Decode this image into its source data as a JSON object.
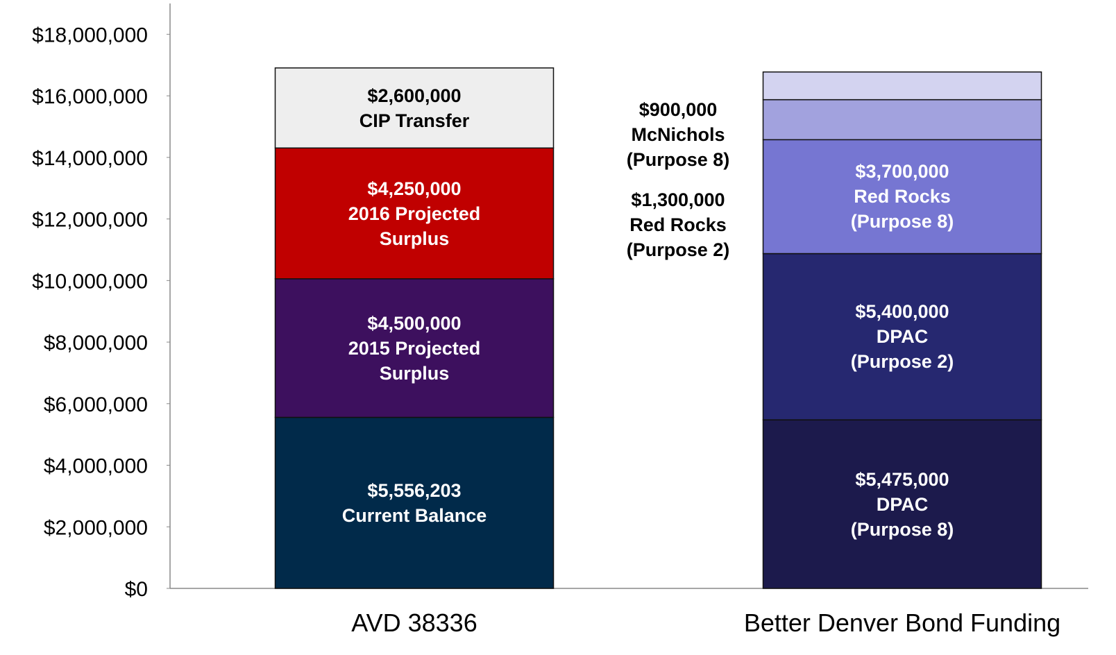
{
  "chart_data": {
    "type": "stacked-bar",
    "categories": [
      "AVD 38336",
      "Better Denver Bond Funding"
    ],
    "series": [
      {
        "name": "Current Balance",
        "color": "#012a4a",
        "values": [
          5556203,
          null
        ],
        "value_labels": [
          "$5,556,203",
          null
        ]
      },
      {
        "name": "2015 Projected Surplus",
        "color": "#3d105e",
        "values": [
          4500000,
          null
        ],
        "value_labels": [
          "$4,500,000",
          null
        ]
      },
      {
        "name": "2016 Projected Surplus",
        "color": "#c00000",
        "values": [
          4250000,
          null
        ],
        "value_labels": [
          "$4,250,000",
          null
        ]
      },
      {
        "name": "CIP Transfer",
        "color": "#eeeeee",
        "values": [
          2600000,
          null
        ],
        "value_labels": [
          "$2,600,000",
          null
        ]
      },
      {
        "name": "DPAC (Purpose 8)",
        "color": "#1c1a4c",
        "values": [
          null,
          5475000
        ],
        "value_labels": [
          null,
          "$5,475,000"
        ]
      },
      {
        "name": "DPAC (Purpose 2)",
        "color": "#262870",
        "values": [
          null,
          5400000
        ],
        "value_labels": [
          null,
          "$5,400,000"
        ]
      },
      {
        "name": "Red Rocks (Purpose 8)",
        "color": "#7676d2",
        "values": [
          null,
          3700000
        ],
        "value_labels": [
          null,
          "$3,700,000"
        ]
      },
      {
        "name": "Red Rocks (Purpose 2)",
        "color": "#a2a2de",
        "values": [
          null,
          1300000
        ],
        "value_labels": [
          null,
          "$1,300,000"
        ]
      },
      {
        "name": "McNichols (Purpose 8)",
        "color": "#d3d3f0",
        "values": [
          null,
          900000
        ],
        "value_labels": [
          null,
          "$900,000"
        ]
      }
    ],
    "ylim": [
      0,
      19000000
    ],
    "yticks": [
      {
        "value": 0,
        "label": "$0"
      },
      {
        "value": 2000000,
        "label": "$2,000,000"
      },
      {
        "value": 4000000,
        "label": "$4,000,000"
      },
      {
        "value": 6000000,
        "label": "$6,000,000"
      },
      {
        "value": 8000000,
        "label": "$8,000,000"
      },
      {
        "value": 10000000,
        "label": "$10,000,000"
      },
      {
        "value": 12000000,
        "label": "$12,000,000"
      },
      {
        "value": 14000000,
        "label": "$14,000,000"
      },
      {
        "value": 16000000,
        "label": "$16,000,000"
      },
      {
        "value": 18000000,
        "label": "$18,000,000"
      }
    ]
  }
}
